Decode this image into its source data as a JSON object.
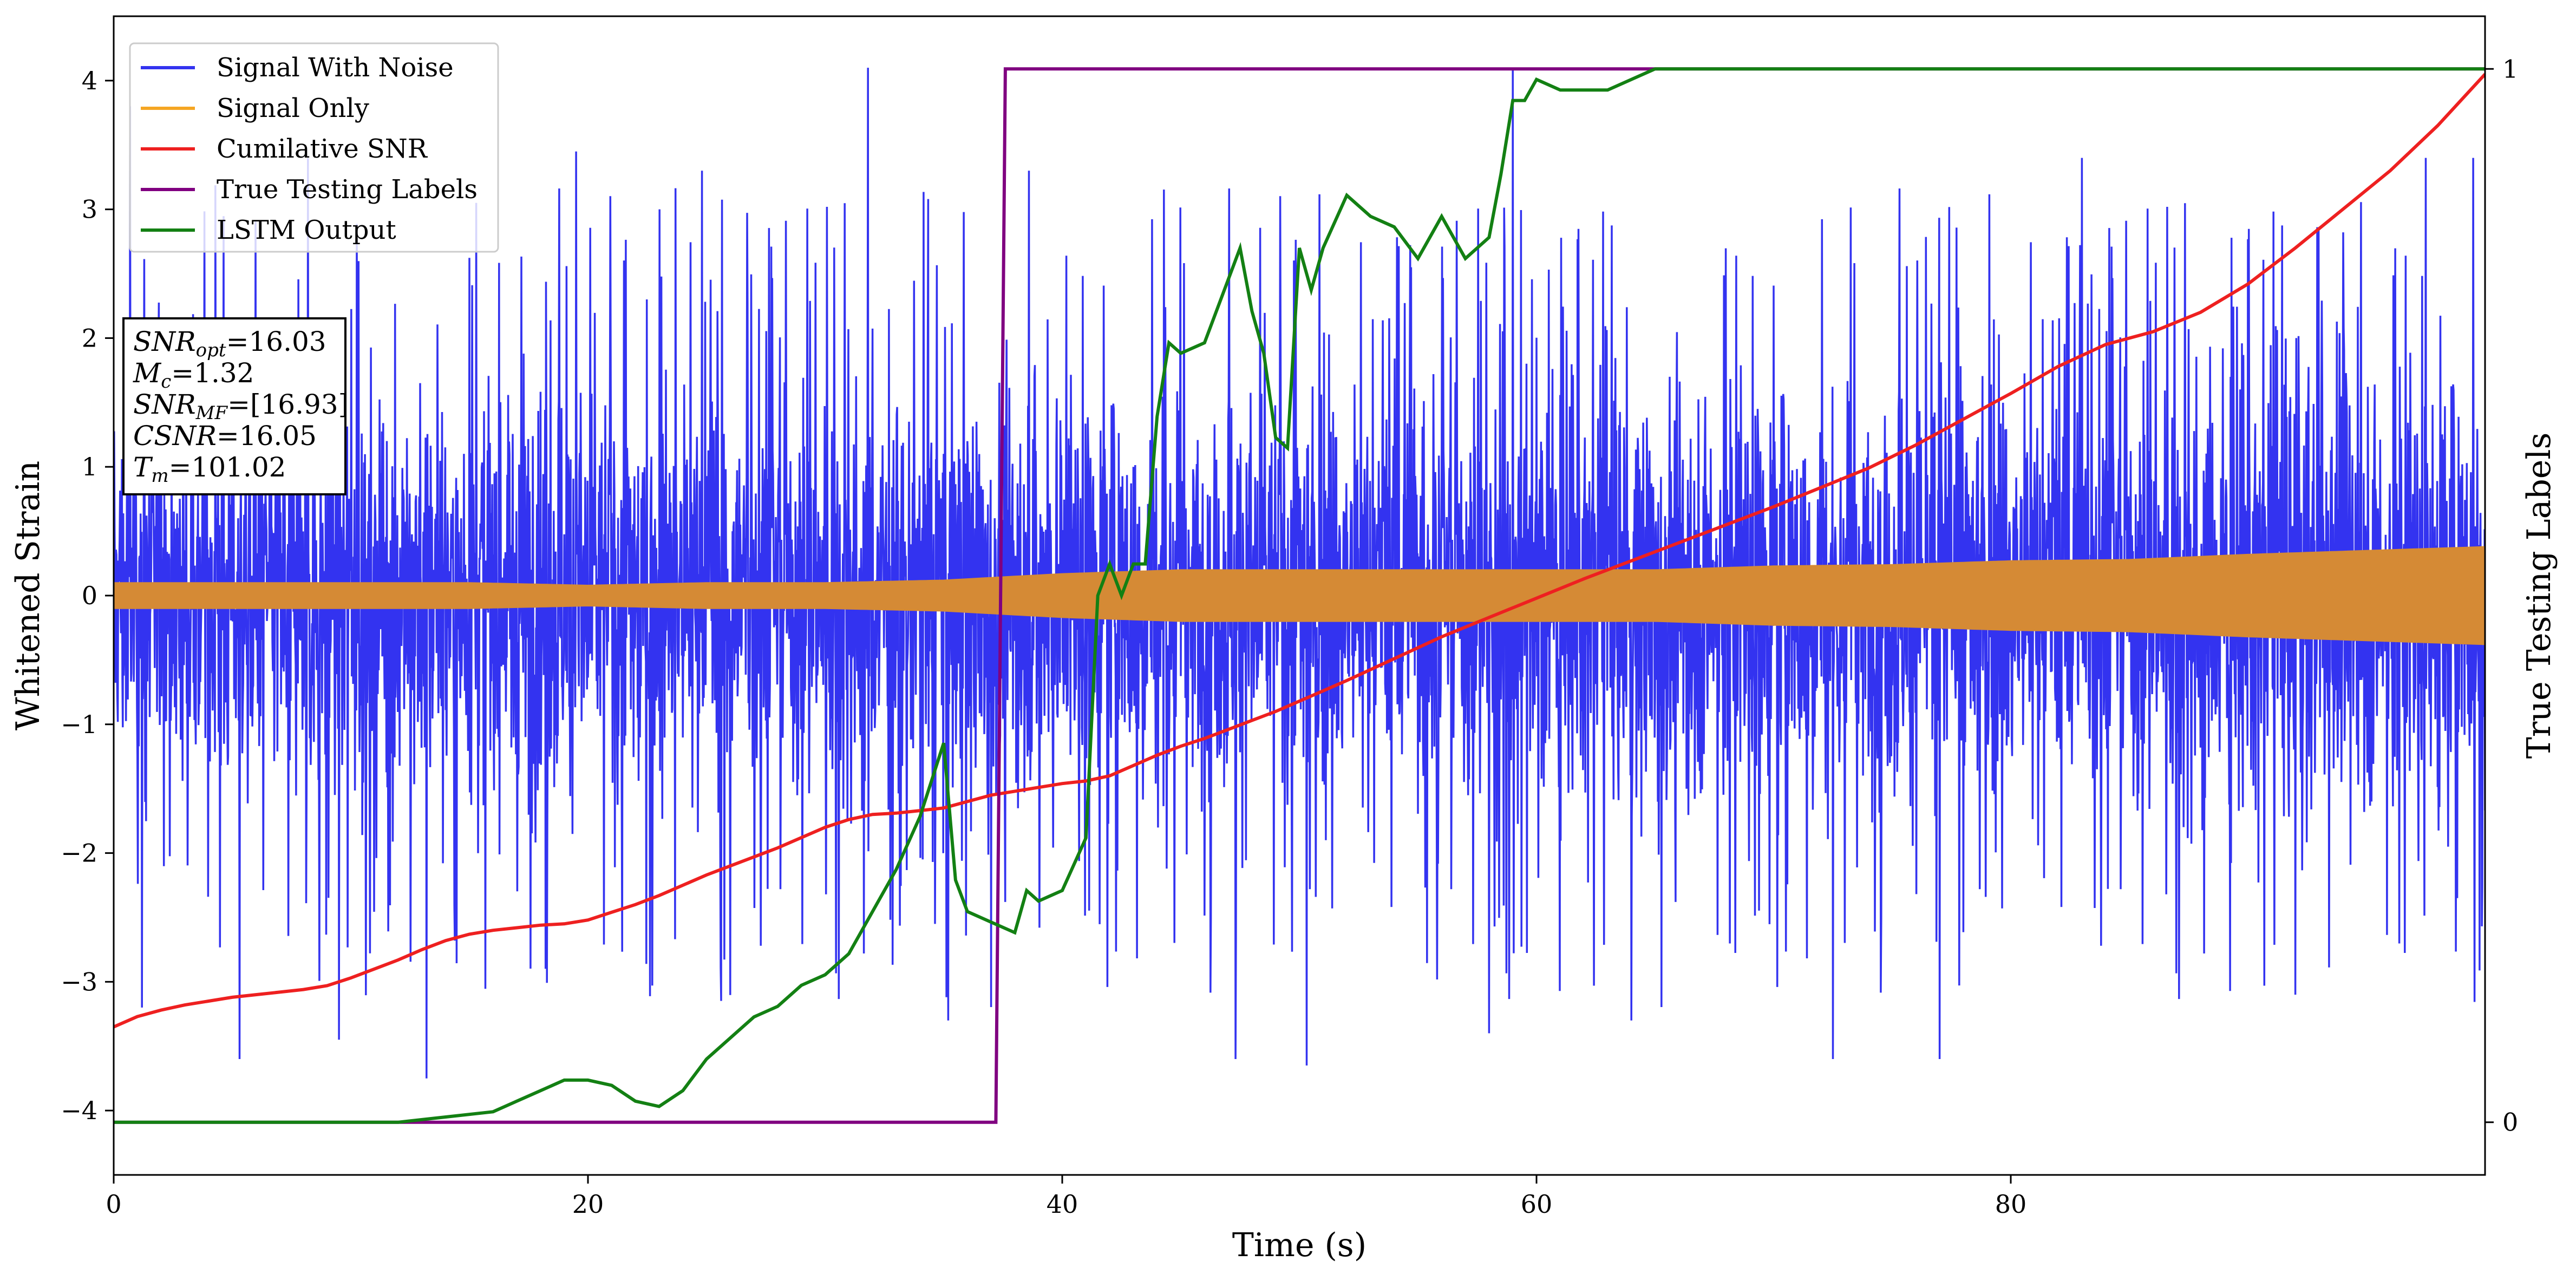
{
  "chart_data": {
    "type": "line",
    "xlabel": "Time (s)",
    "ylabel": "Whitened Strain",
    "y2label": "True Testing Labels",
    "xlim": [
      0,
      100
    ],
    "ylim": [
      -4.5,
      4.5
    ],
    "y2lim": [
      -0.05,
      1.05
    ],
    "xticks": [
      0,
      20,
      40,
      60,
      80
    ],
    "yticks": [
      -4,
      -3,
      -2,
      -1,
      0,
      1,
      2,
      3,
      4
    ],
    "y2ticks": [
      0,
      1
    ],
    "grid": false,
    "legend_position": "top-left",
    "colors": {
      "noise": "#3333f0",
      "signal": "#d58a35",
      "csnr": "#ee2020",
      "labels": "#800080",
      "lstm": "#138013"
    },
    "series": [
      {
        "name": "Signal With Noise",
        "axis": "left",
        "description_of_values": "noisy strain oscillating around 0",
        "envelope_upper": [
          [
            0,
            1.8
          ],
          [
            10,
            2.0
          ],
          [
            20,
            2.0
          ],
          [
            30,
            2.0
          ],
          [
            37,
            2.0
          ],
          [
            40,
            2.0
          ],
          [
            50,
            2.0
          ],
          [
            60,
            2.0
          ],
          [
            70,
            2.1
          ],
          [
            80,
            2.1
          ],
          [
            90,
            2.2
          ],
          [
            100,
            2.2
          ]
        ],
        "envelope_lower": [
          [
            0,
            -1.8
          ],
          [
            10,
            -2.0
          ],
          [
            20,
            -2.0
          ],
          [
            30,
            -2.0
          ],
          [
            37,
            -2.0
          ],
          [
            40,
            -2.0
          ],
          [
            50,
            -2.0
          ],
          [
            60,
            -2.0
          ],
          [
            70,
            -2.1
          ],
          [
            80,
            -2.1
          ],
          [
            90,
            -2.2
          ],
          [
            100,
            -2.2
          ]
        ],
        "spikes": [
          [
            0.7,
            3.8
          ],
          [
            1.2,
            -3.2
          ],
          [
            5.3,
            -3.6
          ],
          [
            8.2,
            3.4
          ],
          [
            9.5,
            -3.45
          ],
          [
            13.2,
            -3.75
          ],
          [
            19.5,
            3.45
          ],
          [
            24.8,
            3.3
          ],
          [
            31.8,
            4.1
          ],
          [
            35.2,
            -3.3
          ],
          [
            38.6,
            3.3
          ],
          [
            47.3,
            -3.6
          ],
          [
            50.3,
            -3.65
          ],
          [
            59.0,
            4.1
          ],
          [
            58.0,
            -3.4
          ],
          [
            64.0,
            -3.3
          ],
          [
            72.5,
            -3.6
          ],
          [
            77.0,
            -3.6
          ],
          [
            83.0,
            3.4
          ],
          [
            92.0,
            -3.1
          ],
          [
            97.5,
            3.4
          ],
          [
            99.5,
            3.4
          ]
        ]
      },
      {
        "name": "Signal Only",
        "axis": "left",
        "description_of_values": "inspiral chirp, amplitude envelope",
        "envelope": [
          [
            0,
            0.1
          ],
          [
            5,
            0.1
          ],
          [
            10,
            0.1
          ],
          [
            15,
            0.1
          ],
          [
            20,
            0.08
          ],
          [
            25,
            0.1
          ],
          [
            30,
            0.1
          ],
          [
            35,
            0.12
          ],
          [
            40,
            0.17
          ],
          [
            45,
            0.2
          ],
          [
            50,
            0.2
          ],
          [
            55,
            0.2
          ],
          [
            60,
            0.2
          ],
          [
            65,
            0.2
          ],
          [
            70,
            0.23
          ],
          [
            75,
            0.24
          ],
          [
            80,
            0.27
          ],
          [
            85,
            0.28
          ],
          [
            90,
            0.32
          ],
          [
            95,
            0.35
          ],
          [
            100,
            0.38
          ]
        ]
      },
      {
        "name": "Cumilative SNR",
        "axis": "left",
        "points": [
          [
            0,
            -3.35
          ],
          [
            1,
            -3.27
          ],
          [
            2,
            -3.22
          ],
          [
            3,
            -3.18
          ],
          [
            4,
            -3.15
          ],
          [
            5,
            -3.12
          ],
          [
            6,
            -3.1
          ],
          [
            7,
            -3.08
          ],
          [
            8,
            -3.06
          ],
          [
            9,
            -3.03
          ],
          [
            10,
            -2.97
          ],
          [
            11,
            -2.9
          ],
          [
            12,
            -2.83
          ],
          [
            13,
            -2.75
          ],
          [
            14,
            -2.68
          ],
          [
            15,
            -2.63
          ],
          [
            16,
            -2.6
          ],
          [
            17,
            -2.58
          ],
          [
            18,
            -2.56
          ],
          [
            19,
            -2.55
          ],
          [
            20,
            -2.52
          ],
          [
            21,
            -2.46
          ],
          [
            22,
            -2.4
          ],
          [
            23,
            -2.33
          ],
          [
            24,
            -2.25
          ],
          [
            25,
            -2.17
          ],
          [
            26,
            -2.1
          ],
          [
            27,
            -2.03
          ],
          [
            28,
            -1.96
          ],
          [
            29,
            -1.88
          ],
          [
            30,
            -1.8
          ],
          [
            31,
            -1.74
          ],
          [
            32,
            -1.7
          ],
          [
            33,
            -1.69
          ],
          [
            34,
            -1.67
          ],
          [
            35,
            -1.65
          ],
          [
            36,
            -1.6
          ],
          [
            37,
            -1.55
          ],
          [
            38,
            -1.52
          ],
          [
            39,
            -1.49
          ],
          [
            40,
            -1.46
          ],
          [
            41,
            -1.44
          ],
          [
            42,
            -1.4
          ],
          [
            43,
            -1.32
          ],
          [
            44,
            -1.24
          ],
          [
            45,
            -1.17
          ],
          [
            46,
            -1.11
          ],
          [
            47,
            -1.04
          ],
          [
            48,
            -0.97
          ],
          [
            49,
            -0.9
          ],
          [
            50,
            -0.82
          ],
          [
            52,
            -0.66
          ],
          [
            54,
            -0.49
          ],
          [
            56,
            -0.32
          ],
          [
            58,
            -0.17
          ],
          [
            60,
            -0.02
          ],
          [
            62,
            0.13
          ],
          [
            64,
            0.27
          ],
          [
            66,
            0.41
          ],
          [
            68,
            0.55
          ],
          [
            70,
            0.69
          ],
          [
            72,
            0.84
          ],
          [
            74,
            0.99
          ],
          [
            76,
            1.17
          ],
          [
            78,
            1.37
          ],
          [
            80,
            1.57
          ],
          [
            82,
            1.78
          ],
          [
            84,
            1.95
          ],
          [
            86,
            2.05
          ],
          [
            88,
            2.2
          ],
          [
            90,
            2.42
          ],
          [
            92,
            2.7
          ],
          [
            94,
            3.0
          ],
          [
            96,
            3.3
          ],
          [
            98,
            3.65
          ],
          [
            100,
            4.05
          ]
        ]
      },
      {
        "name": "True Testing Labels",
        "axis": "right",
        "points": [
          [
            0,
            0
          ],
          [
            37.2,
            0
          ],
          [
            37.6,
            1
          ],
          [
            100,
            1
          ]
        ]
      },
      {
        "name": "LSTM Output",
        "axis": "right",
        "points": [
          [
            0,
            0
          ],
          [
            10,
            0
          ],
          [
            12,
            0.0
          ],
          [
            14,
            0.005
          ],
          [
            16,
            0.01
          ],
          [
            17,
            0.02
          ],
          [
            18,
            0.03
          ],
          [
            19,
            0.04
          ],
          [
            20,
            0.04
          ],
          [
            21,
            0.035
          ],
          [
            22,
            0.02
          ],
          [
            23,
            0.015
          ],
          [
            24,
            0.03
          ],
          [
            25,
            0.06
          ],
          [
            26,
            0.08
          ],
          [
            27,
            0.1
          ],
          [
            28,
            0.11
          ],
          [
            29,
            0.13
          ],
          [
            30,
            0.14
          ],
          [
            31,
            0.16
          ],
          [
            32,
            0.2
          ],
          [
            33,
            0.24
          ],
          [
            34,
            0.29
          ],
          [
            35,
            0.36
          ],
          [
            35.5,
            0.23
          ],
          [
            36,
            0.2
          ],
          [
            37,
            0.19
          ],
          [
            38,
            0.18
          ],
          [
            38.5,
            0.22
          ],
          [
            39,
            0.21
          ],
          [
            40,
            0.22
          ],
          [
            41,
            0.27
          ],
          [
            41.5,
            0.5
          ],
          [
            42,
            0.53
          ],
          [
            42.5,
            0.5
          ],
          [
            43,
            0.53
          ],
          [
            43.5,
            0.53
          ],
          [
            44,
            0.67
          ],
          [
            44.5,
            0.74
          ],
          [
            45,
            0.73
          ],
          [
            46,
            0.74
          ],
          [
            47,
            0.8
          ],
          [
            47.5,
            0.83
          ],
          [
            48,
            0.77
          ],
          [
            48.5,
            0.73
          ],
          [
            49,
            0.65
          ],
          [
            49.5,
            0.64
          ],
          [
            50,
            0.83
          ],
          [
            50.5,
            0.79
          ],
          [
            51,
            0.83
          ],
          [
            52,
            0.88
          ],
          [
            53,
            0.86
          ],
          [
            54,
            0.85
          ],
          [
            55,
            0.82
          ],
          [
            56,
            0.86
          ],
          [
            57,
            0.82
          ],
          [
            58,
            0.84
          ],
          [
            58.5,
            0.9
          ],
          [
            59,
            0.97
          ],
          [
            59.5,
            0.97
          ],
          [
            60,
            0.99
          ],
          [
            61,
            0.98
          ],
          [
            62,
            0.98
          ],
          [
            63,
            0.98
          ],
          [
            64,
            0.99
          ],
          [
            65,
            1.0
          ],
          [
            68,
            1.0
          ],
          [
            100,
            1.0
          ]
        ]
      }
    ],
    "legend": [
      "Signal With Noise",
      "Signal Only",
      "Cumilative SNR",
      "True Testing Labels",
      "LSTM Output"
    ],
    "annotation": [
      {
        "base": "SNR",
        "sub": "opt",
        "value": "=16.03"
      },
      {
        "base": "M",
        "sub": "c",
        "value": "=1.32"
      },
      {
        "base": "SNR",
        "sub": "MF",
        "value": "=[16.93]"
      },
      {
        "base": "CSNR",
        "sub": "",
        "value": "=16.05"
      },
      {
        "base": "T",
        "sub": "m",
        "value": "=101.02"
      }
    ]
  }
}
